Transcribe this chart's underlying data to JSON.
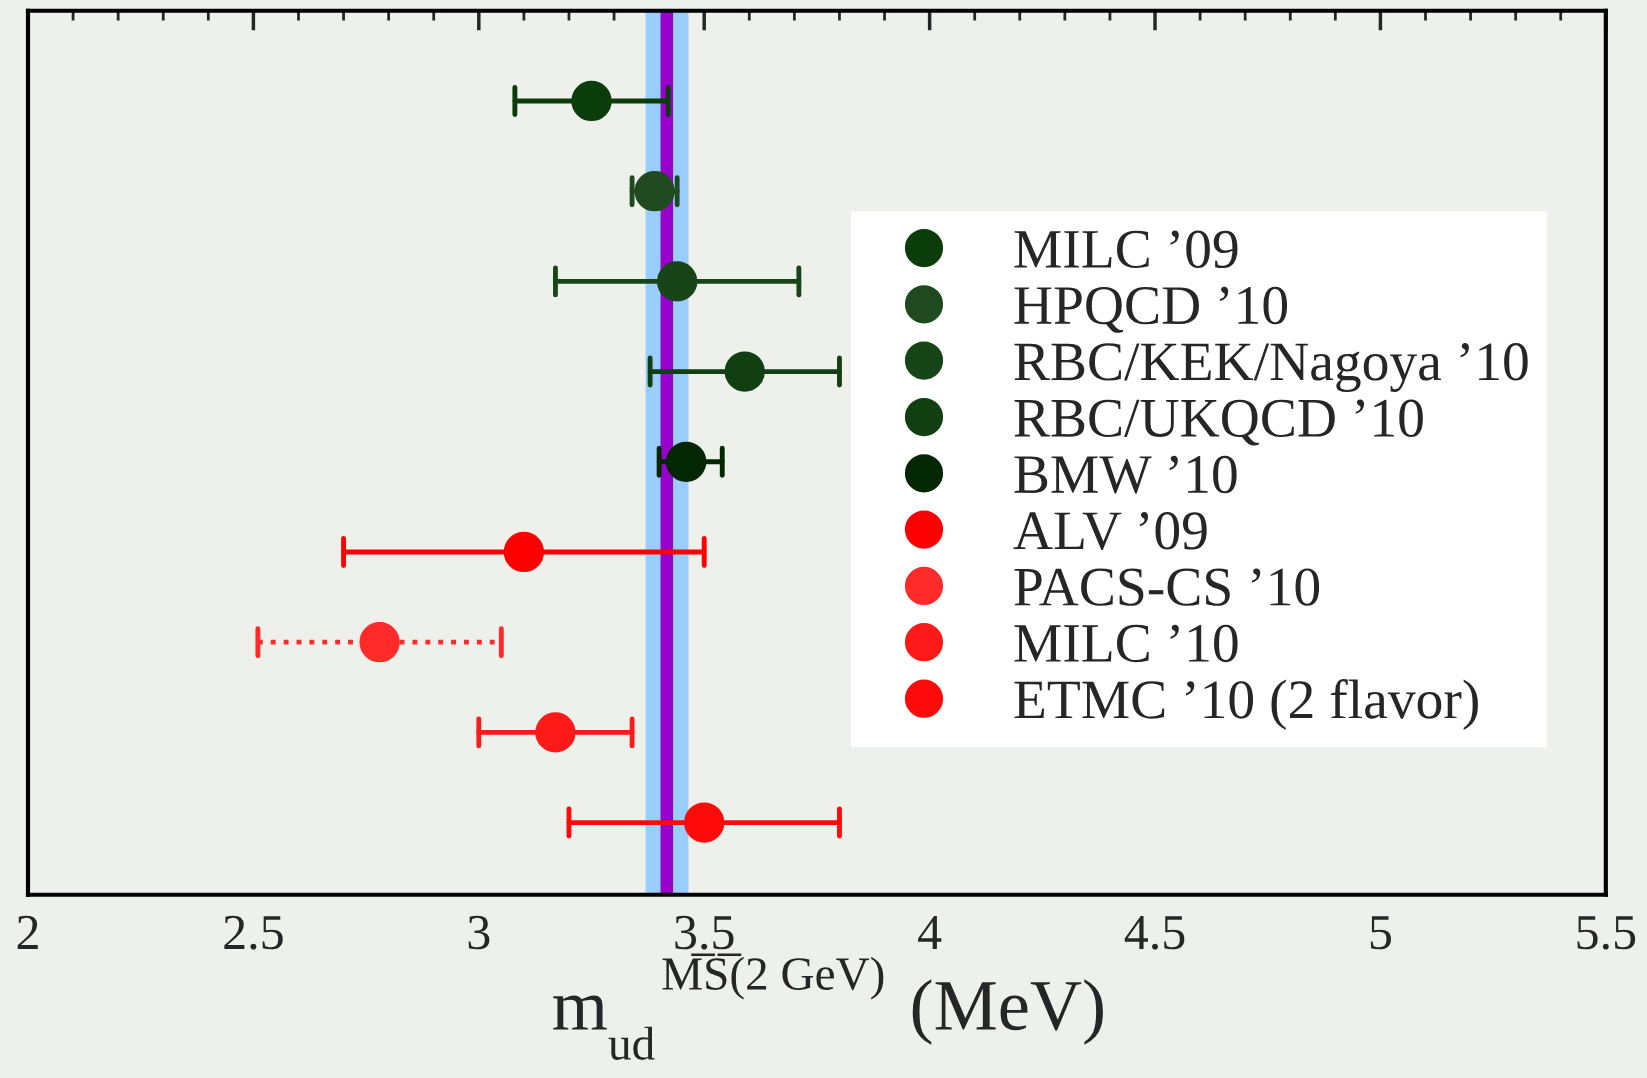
{
  "chart_data": {
    "type": "scatter",
    "orientation": "horizontal",
    "categories": [
      null,
      null,
      null,
      null,
      null,
      null,
      null,
      null,
      null
    ],
    "xlabel": "m$_{ud}$$^{M̅S̅(2 GeV)}$ (MeV)",
    "xlim": [
      2,
      5.5
    ],
    "xticks": [
      2,
      2.5,
      3,
      3.5,
      4,
      4.5,
      5,
      5.5
    ],
    "tick_labels": "x",
    "grid": false,
    "legend": "right",
    "marker": "circle",
    "series": [
      {
        "name": "MILC ’09",
        "color": "#0b3d0b",
        "values": [
          3.25,
          null,
          null,
          null,
          null,
          null,
          null,
          null,
          null
        ],
        "errors": [
          0.17,
          null,
          null,
          null,
          null,
          null,
          null,
          null,
          null
        ]
      },
      {
        "name": "HPQCD ’10",
        "color": "#1f4a1f",
        "values": [
          null,
          3.39,
          null,
          null,
          null,
          null,
          null,
          null,
          null
        ],
        "errors": [
          null,
          0.05,
          null,
          null,
          null,
          null,
          null,
          null,
          null
        ]
      },
      {
        "name": "RBC/KEK/Nagoya ’10",
        "color": "#174517",
        "values": [
          null,
          null,
          3.44,
          null,
          null,
          null,
          null,
          null,
          null
        ],
        "errors": [
          null,
          null,
          0.27,
          null,
          null,
          null,
          null,
          null,
          null
        ]
      },
      {
        "name": "RBC/UKQCD ’10",
        "color": "#123f12",
        "values": [
          null,
          null,
          null,
          3.59,
          null,
          null,
          null,
          null,
          null
        ],
        "errors": [
          null,
          null,
          null,
          0.21,
          null,
          null,
          null,
          null,
          null
        ]
      },
      {
        "name": "BMW ’10",
        "color": "#032603",
        "values": [
          null,
          null,
          null,
          null,
          3.46,
          null,
          null,
          null,
          null
        ],
        "errors": [
          null,
          null,
          null,
          null,
          [
            3.4,
            3.54
          ],
          null,
          null,
          null,
          null
        ]
      },
      {
        "name": "ALV ’09",
        "color": "#ff0000",
        "values": [
          null,
          null,
          null,
          null,
          null,
          3.1,
          null,
          null,
          null
        ],
        "errors": [
          null,
          null,
          null,
          null,
          null,
          0.4,
          null,
          null,
          null
        ]
      },
      {
        "name": "PACS-CS ’10",
        "color": "#ff2a2a",
        "line_style": "dotted",
        "values": [
          null,
          null,
          null,
          null,
          null,
          null,
          2.78,
          null,
          null
        ],
        "errors": [
          null,
          null,
          null,
          null,
          null,
          null,
          [
            2.51,
            3.05
          ],
          null,
          null
        ]
      },
      {
        "name": "MILC ’10",
        "color": "#ff1a1a",
        "values": [
          null,
          null,
          null,
          null,
          null,
          null,
          null,
          3.17,
          null
        ],
        "errors": [
          null,
          null,
          null,
          null,
          null,
          null,
          null,
          0.17,
          null
        ]
      },
      {
        "name": "ETMC ’10 (2 flavor)",
        "color": "#ff0a0a",
        "values": [
          null,
          null,
          null,
          null,
          null,
          null,
          null,
          null,
          3.5
        ],
        "errors": [
          null,
          null,
          null,
          null,
          null,
          null,
          null,
          null,
          0.3
        ]
      }
    ],
    "bands": [
      {
        "axis": "x",
        "from": 3.37,
        "to": 3.465,
        "color": "#99ccff"
      }
    ],
    "ref_lines": [
      {
        "axis": "x",
        "value": 3.417,
        "color": "#9900cc"
      }
    ]
  }
}
